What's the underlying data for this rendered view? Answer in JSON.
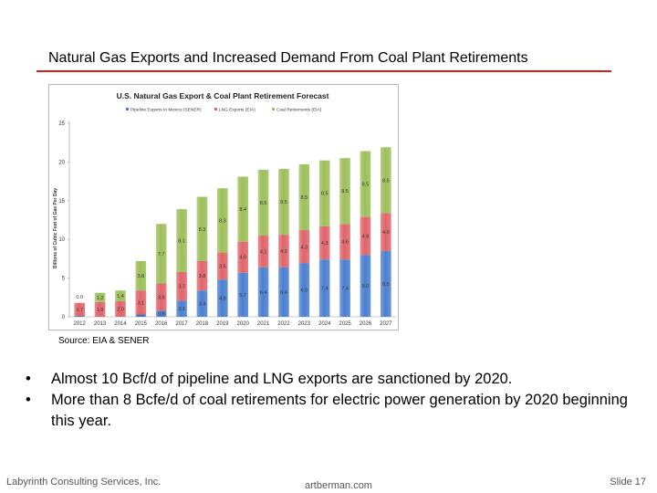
{
  "slide": {
    "title": "Natural Gas Exports and Increased Demand From Coal Plant Retirements",
    "source": "Source:  EIA & SENER",
    "bullets": [
      "Almost 10 Bcf/d of pipeline and LNG exports are sanctioned by 2020.",
      "More than 8 Bcfe/d of coal retirements for electric power generation by 2020 beginning this year."
    ],
    "bullet_symbol": "•",
    "footer_left": "Labyrinth Consulting Services, Inc.",
    "footer_center": "artberman.com",
    "footer_right": "Slide 17"
  },
  "colors": {
    "accent_rule": "#d0211c",
    "pipeline": "#4a7fd0",
    "lng": "#e0646a",
    "coal": "#9cbf5a"
  },
  "chart_data": {
    "type": "bar",
    "stacked": true,
    "title": "U.S. Natural Gas Export & Coal Plant Retirement Forecast",
    "ylabel": "Billions of Cubic Feet of Gas Per Day",
    "xlabel": "",
    "ylim": [
      0,
      25
    ],
    "yticks": [
      0,
      5,
      10,
      15,
      20,
      25
    ],
    "legend_position": "top",
    "categories": [
      "2012",
      "2013",
      "2014",
      "2015",
      "2016",
      "2017",
      "2018",
      "2019",
      "2020",
      "2021",
      "2022",
      "2023",
      "2024",
      "2025",
      "2026",
      "2027"
    ],
    "series": [
      {
        "name": "Pipeline Exports to Mexico (SENER)",
        "color": "#4a7fd0",
        "values": [
          0.1,
          0.0,
          0.0,
          0.3,
          0.8,
          2.1,
          3.4,
          4.8,
          5.7,
          6.4,
          6.4,
          6.9,
          7.4,
          7.4,
          8.0,
          8.5
        ],
        "labels": [
          "0.1",
          "0.0",
          "0.0",
          "0.3",
          "0.8",
          "2.1",
          "3.4",
          "4.8",
          "5.7",
          "6.4",
          "6.4",
          "6.9",
          "7.4",
          "7.4",
          "8.0",
          "8.5"
        ]
      },
      {
        "name": "LNG Exports (EIA)",
        "color": "#e0646a",
        "values": [
          1.7,
          1.9,
          2.0,
          3.1,
          3.5,
          3.7,
          3.8,
          3.5,
          4.0,
          4.1,
          4.2,
          4.3,
          4.3,
          4.6,
          4.9,
          4.9
        ],
        "labels": [
          "1.7",
          "1.9",
          "2.0",
          "3.1",
          "3.5",
          "3.7",
          "3.8",
          "3.5",
          "4.0",
          "4.1",
          "4.2",
          "4.3",
          "4.3",
          "4.6",
          "4.9",
          "4.9"
        ]
      },
      {
        "name": "Coal Retirements (EIA)",
        "color": "#9cbf5a",
        "values": [
          0.0,
          1.2,
          1.4,
          3.8,
          7.7,
          8.1,
          8.3,
          8.3,
          8.4,
          8.5,
          8.5,
          8.5,
          8.5,
          8.5,
          8.5,
          8.5
        ],
        "labels": [
          "0.0",
          "1.2",
          "1.4",
          "3.8",
          "7.7",
          "8.1",
          "8.3",
          "8.3",
          "8.4",
          "8.5",
          "8.5",
          "8.5",
          "8.5",
          "8.5",
          "8.5",
          "8.5"
        ]
      }
    ]
  }
}
